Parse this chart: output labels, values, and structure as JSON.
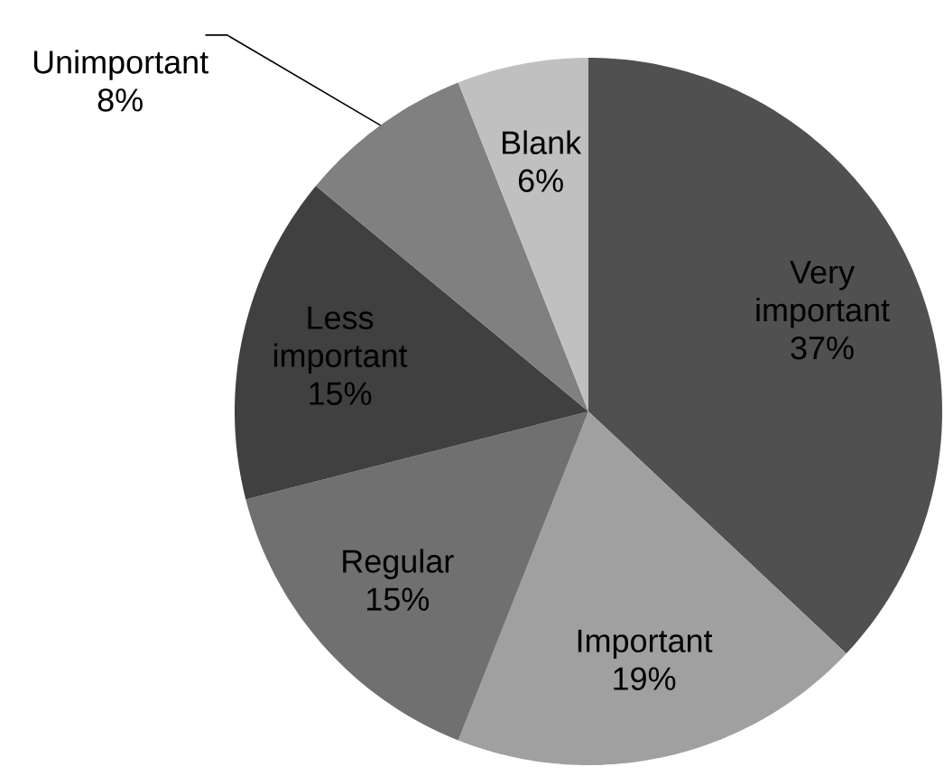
{
  "chart_data": {
    "type": "pie",
    "categories": [
      "Very important",
      "Important",
      "Regular",
      "Less important",
      "Unimportant",
      "Blank"
    ],
    "values": [
      37,
      19,
      15,
      15,
      8,
      6
    ],
    "colors": [
      "#505050",
      "#a0a0a0",
      "#707070",
      "#404040",
      "#808080",
      "#c0c0c0"
    ],
    "value_labels": [
      "37%",
      "19%",
      "15%",
      "15%",
      "8%",
      "6%"
    ]
  }
}
